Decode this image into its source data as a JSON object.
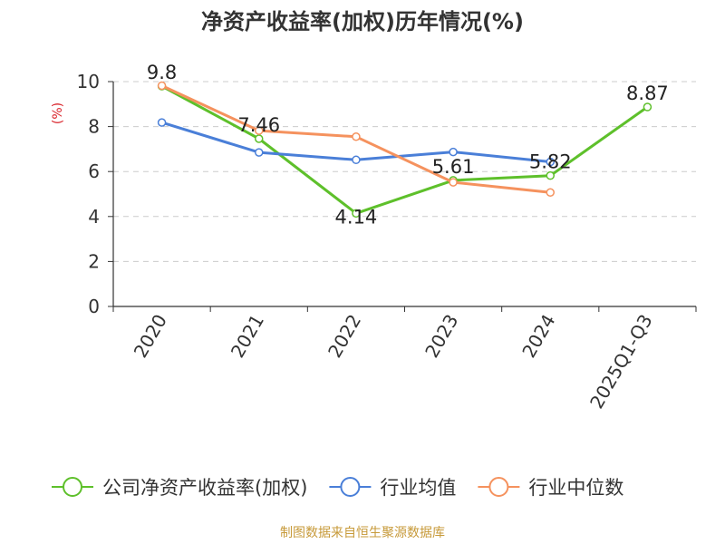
{
  "chart_data": {
    "type": "line",
    "title": "净资产收益率(加权)历年情况(%)",
    "ylabel": "(%)",
    "ylim": [
      0,
      10
    ],
    "yticks": [
      0,
      2,
      4,
      6,
      8,
      10
    ],
    "categories": [
      "2020",
      "2021",
      "2022",
      "2023",
      "2024",
      "2025Q1-Q3"
    ],
    "grid": true,
    "legend_position": "bottom",
    "series": [
      {
        "name": "公司净资产收益率(加权)",
        "color": "#5ec02b",
        "values": [
          9.8,
          7.46,
          4.14,
          5.61,
          5.82,
          8.87
        ],
        "labels": [
          "9.8",
          "7.46",
          "4.14",
          "5.61",
          "5.82",
          "8.87"
        ]
      },
      {
        "name": "行业均值",
        "color": "#4a7fd8",
        "values": [
          8.18,
          6.85,
          6.52,
          6.87,
          6.43,
          null
        ]
      },
      {
        "name": "行业中位数",
        "color": "#f5925e",
        "values": [
          9.82,
          7.82,
          7.55,
          5.52,
          5.07,
          null
        ]
      }
    ]
  },
  "source_text": "制图数据来自恒生聚源数据库",
  "colors": {
    "axis": "#333333",
    "grid": "#cccccc",
    "ylabel": "#d9232a",
    "source": "#c79a3a"
  }
}
